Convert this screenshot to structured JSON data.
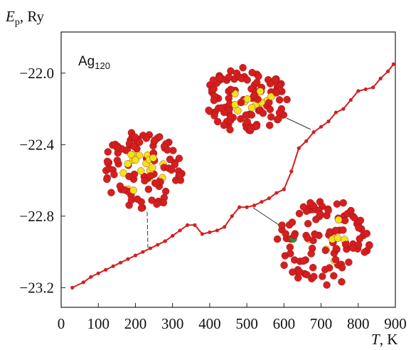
{
  "chart_data": {
    "type": "line",
    "y_label": {
      "symbol": "E",
      "subscript": "p",
      "unit": ", Ry"
    },
    "x_label": {
      "symbol": "T",
      "unit": ", K"
    },
    "annotation": {
      "text": "Ag",
      "subscript": "120"
    },
    "xlim": [
      0,
      900
    ],
    "ylim": [
      -23.31,
      -21.77
    ],
    "xticks": [
      0,
      100,
      200,
      300,
      400,
      500,
      600,
      700,
      800,
      900
    ],
    "yticks": [
      {
        "value": -22.0,
        "label": "−22.0"
      },
      {
        "value": -22.4,
        "label": "−22.4"
      },
      {
        "value": -22.8,
        "label": "−22.8"
      },
      {
        "value": -23.2,
        "label": "−23.2"
      }
    ],
    "x": [
      30,
      60,
      80,
      100,
      120,
      140,
      160,
      180,
      200,
      220,
      240,
      260,
      280,
      300,
      320,
      340,
      360,
      380,
      400,
      420,
      440,
      460,
      480,
      500,
      520,
      540,
      560,
      580,
      600,
      620,
      640,
      660,
      680,
      700,
      720,
      740,
      760,
      780,
      800,
      820,
      840,
      860,
      880,
      895
    ],
    "series": [
      {
        "color": "#d42020",
        "values": [
          -23.2,
          -23.17,
          -23.14,
          -23.12,
          -23.1,
          -23.08,
          -23.06,
          -23.04,
          -23.02,
          -23.0,
          -22.98,
          -22.96,
          -22.94,
          -22.91,
          -22.88,
          -22.85,
          -22.85,
          -22.9,
          -22.89,
          -22.88,
          -22.86,
          -22.8,
          -22.75,
          -22.75,
          -22.74,
          -22.72,
          -22.7,
          -22.67,
          -22.65,
          -22.55,
          -22.42,
          -22.38,
          -22.33,
          -22.3,
          -22.27,
          -22.22,
          -22.2,
          -22.15,
          -22.1,
          -22.09,
          -22.08,
          -22.03,
          -21.99,
          -21.95
        ]
      }
    ]
  }
}
